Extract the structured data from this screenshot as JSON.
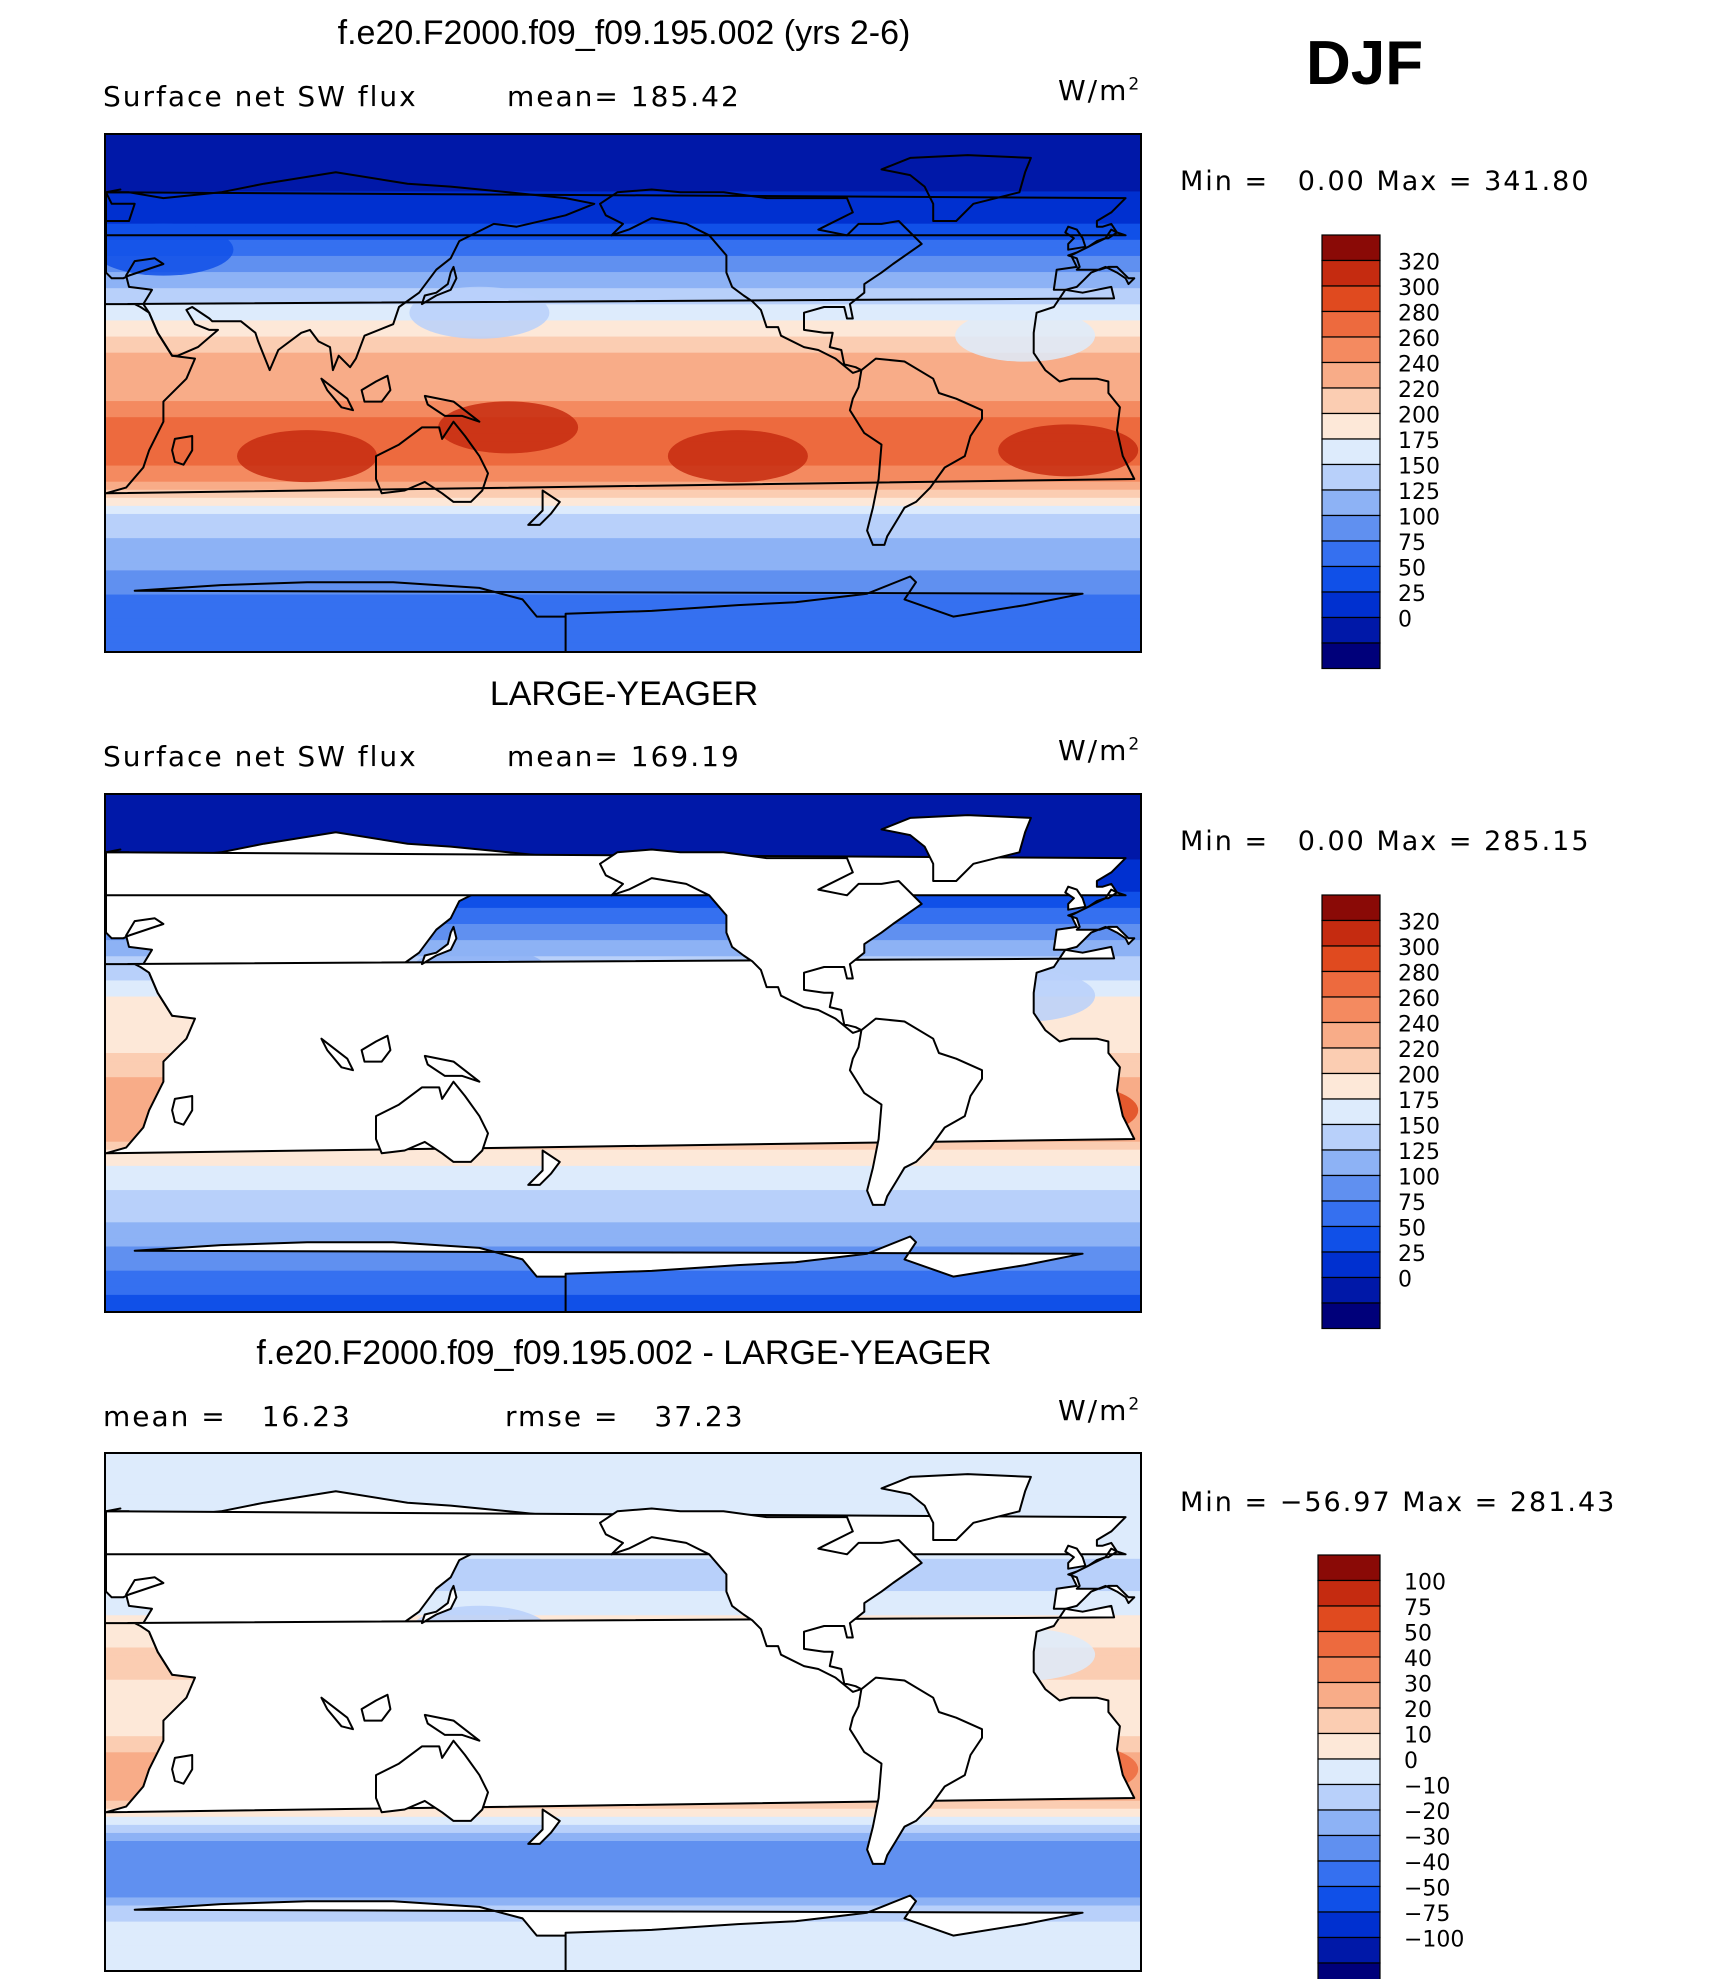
{
  "season": "DJF",
  "units_base": "W/m",
  "units_exp": "2",
  "colors": {
    "abs_scale": [
      "#00007a",
      "#0018a8",
      "#0030d0",
      "#1050e8",
      "#3570f0",
      "#6090f0",
      "#8db2f5",
      "#b8d0fa",
      "#ddebfc",
      "#fde8d8",
      "#fbcdb2",
      "#f8ac88",
      "#f48a60",
      "#ed6a3e",
      "#e04a1f",
      "#c52b10",
      "#8a0a06"
    ],
    "diff_scale": [
      "#00007a",
      "#0018a8",
      "#0030d0",
      "#1050e8",
      "#3570f0",
      "#6090f0",
      "#8db2f5",
      "#b8d0fa",
      "#ddebfc",
      "#fde8d8",
      "#fbcdb2",
      "#f8ac88",
      "#f48a60",
      "#ed6a3e",
      "#e04a1f",
      "#c52b10",
      "#8a0a06"
    ],
    "land": "#ffffff",
    "coast": "#000000"
  },
  "panels": [
    {
      "title": "f.e20.F2000.f09_f09.195.002 (yrs 2-6)",
      "left_label": "Surface net SW flux",
      "stat_label": "mean=",
      "stat_value": "185.42",
      "min_label": "Min =",
      "min_value": "0.00",
      "max_label": "Max =",
      "max_value": "341.80",
      "land_masked": false,
      "legend_labels": [
        "320",
        "300",
        "280",
        "260",
        "240",
        "220",
        "200",
        "175",
        "150",
        "125",
        "100",
        "75",
        "50",
        "25",
        "0"
      ]
    },
    {
      "title": "LARGE-YEAGER",
      "left_label": "Surface net SW flux",
      "stat_label": "mean=",
      "stat_value": "169.19",
      "min_label": "Min =",
      "min_value": "0.00",
      "max_label": "Max =",
      "max_value": "285.15",
      "land_masked": true,
      "legend_labels": [
        "320",
        "300",
        "280",
        "260",
        "240",
        "220",
        "200",
        "175",
        "150",
        "125",
        "100",
        "75",
        "50",
        "25",
        "0"
      ]
    },
    {
      "title": "f.e20.F2000.f09_f09.195.002 - LARGE-YEAGER",
      "left_label": "mean =",
      "left_value": "16.23",
      "stat_label": "rmse =",
      "stat_value": "37.23",
      "min_label": "Min =",
      "min_value": "−56.97",
      "max_label": "Max =",
      "max_value": "281.43",
      "land_masked": true,
      "legend_labels": [
        "100",
        "75",
        "50",
        "40",
        "30",
        "20",
        "10",
        "0",
        "−10",
        "−20",
        "−30",
        "−40",
        "−50",
        "−75",
        "−100"
      ]
    }
  ],
  "chart_data": [
    {
      "type": "heatmap",
      "title": "f.e20.F2000.f09_f09.195.002 (yrs 2-6)",
      "variable": "Surface net SW flux",
      "units": "W/m2",
      "mean": 185.42,
      "min": 0.0,
      "max": 341.8,
      "contour_levels": [
        0,
        25,
        50,
        75,
        100,
        125,
        150,
        175,
        200,
        220,
        240,
        260,
        280,
        300,
        320
      ],
      "zonal_pattern_lat_deg": [
        90,
        75,
        60,
        45,
        30,
        15,
        0,
        -15,
        -30,
        -45,
        -60,
        -75,
        -90
      ],
      "zonal_pattern_approx_value": [
        0,
        10,
        50,
        110,
        185,
        240,
        250,
        300,
        270,
        160,
        130,
        90,
        90
      ]
    },
    {
      "type": "heatmap",
      "title": "LARGE-YEAGER",
      "variable": "Surface net SW flux",
      "units": "W/m2",
      "mean": 169.19,
      "min": 0.0,
      "max": 285.15,
      "contour_levels": [
        0,
        25,
        50,
        75,
        100,
        125,
        150,
        175,
        200,
        220,
        240,
        260,
        280,
        300,
        320
      ],
      "zonal_pattern_lat_deg": [
        90,
        75,
        60,
        45,
        30,
        15,
        0,
        -15,
        -30,
        -45,
        -60,
        -75,
        -90
      ],
      "zonal_pattern_approx_value": [
        0,
        10,
        40,
        100,
        165,
        210,
        220,
        260,
        240,
        180,
        150,
        100,
        60
      ]
    },
    {
      "type": "heatmap",
      "title": "f.e20.F2000.f09_f09.195.002 - LARGE-YEAGER",
      "units": "W/m2",
      "mean": 16.23,
      "rmse": 37.23,
      "min": -56.97,
      "max": 281.43,
      "contour_levels": [
        -100,
        -75,
        -50,
        -40,
        -30,
        -20,
        -10,
        0,
        10,
        20,
        30,
        40,
        50,
        75,
        100
      ],
      "zonal_pattern_lat_deg": [
        90,
        75,
        60,
        45,
        30,
        15,
        0,
        -15,
        -30,
        -45,
        -60,
        -75,
        -90
      ],
      "zonal_pattern_approx_value": [
        5,
        10,
        5,
        -5,
        15,
        25,
        10,
        30,
        30,
        -20,
        -30,
        5,
        10
      ]
    }
  ]
}
